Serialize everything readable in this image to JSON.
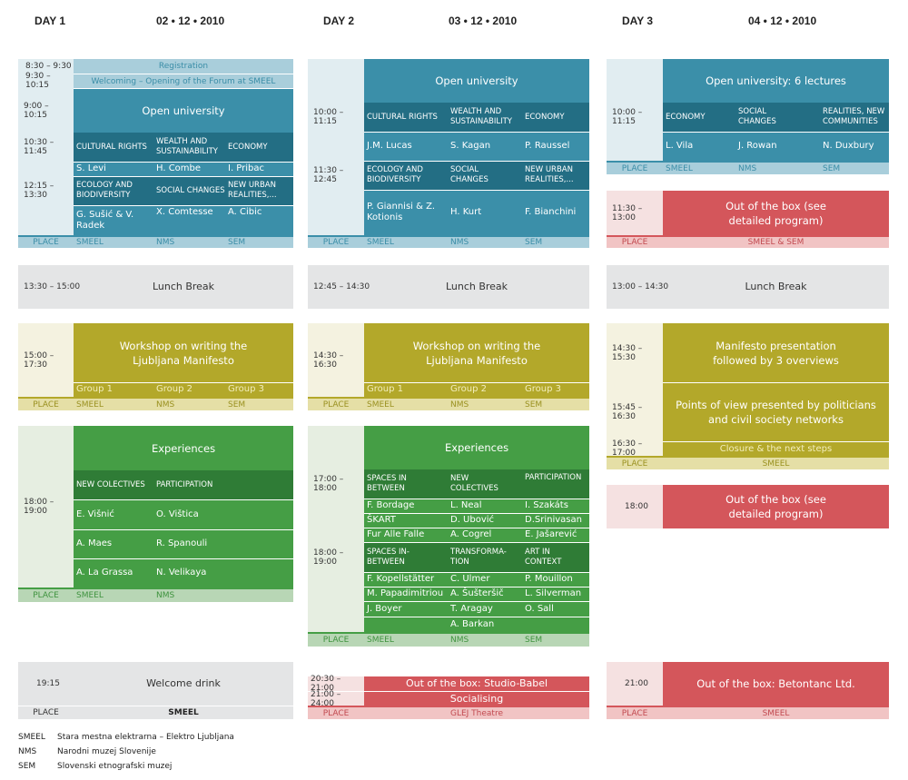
{
  "headers": {
    "day1": "DAY 1",
    "date1": "02 • 12 • 2010",
    "day2": "DAY 2",
    "date2": "03 • 12 • 2010",
    "day3": "DAY 3",
    "date3": "04 • 12 • 2010"
  },
  "place_label": "PLACE",
  "day1": {
    "t_reg": "8:30 – 9:30",
    "registration": "Registration",
    "t_welcome": "9:30 – 10:15",
    "welcoming": "Welcoming – Opening of the Forum at SMEEL",
    "t_open": "9:00 – 10:15",
    "open_university": "Open university",
    "t_s1": "10:30 – 11:45",
    "s1": [
      "CULTURAL RIGHTS",
      "WEALTH AND SUSTAINABILITY",
      "ECONOMY"
    ],
    "s1_names": [
      "S. Levi",
      "H. Combe",
      "I. Pribac"
    ],
    "t_s2": "12:15 – 13:30",
    "s2": [
      "ECOLOGY AND BIODIVERSITY",
      "SOCIAL CHANGES",
      "NEW URBAN REALITIES,..."
    ],
    "s2_names": [
      "G. Sušić & V. Radek",
      "X. Comtesse",
      "A. Cibic"
    ],
    "places1": [
      "SMEEL",
      "NMS",
      "SEM"
    ],
    "t_lunch": "13:30 – 15:00",
    "lunch": "Lunch Break",
    "t_ws": "15:00 – 17:30",
    "workshop": "Workshop on writing the Ljubljana Manifesto",
    "groups": [
      "Group 1",
      "Group 2",
      "Group 3"
    ],
    "places_ws": [
      "SMEEL",
      "NMS",
      "SEM"
    ],
    "experiences": "Experiences",
    "t_exp": "18:00 – 19:00",
    "exp_topics": [
      "NEW COLECTIVES",
      "PARTICIPATION"
    ],
    "exp_names": [
      [
        "E. Višnić",
        "O. Vištica"
      ],
      [
        "A. Maes",
        "R. Spanouli"
      ],
      [
        "A. La Grassa",
        "N. Velikaya"
      ]
    ],
    "places_exp": [
      "SMEEL",
      "NMS"
    ],
    "t_drink": "19:15",
    "drink": "Welcome drink",
    "drink_place": "SMEEL"
  },
  "day2": {
    "open_university": "Open university",
    "t_s1": "10:00 – 11:15",
    "s1": [
      "CULTURAL RIGHTS",
      "WEALTH AND SUSTAINABILITY",
      "ECONOMY"
    ],
    "s1_names": [
      "J.M. Lucas",
      "S. Kagan",
      "P. Raussel"
    ],
    "t_s2": "11:30 – 12:45",
    "s2": [
      "ECOLOGY AND BIODIVERSITY",
      "SOCIAL CHANGES",
      "NEW URBAN REALITIES,..."
    ],
    "s2_names": [
      "P. Giannisi & Z. Kotionis",
      "H. Kurt",
      "F. Bianchini"
    ],
    "places1": [
      "SMEEL",
      "NMS",
      "SEM"
    ],
    "t_lunch": "12:45 – 14:30",
    "lunch": "Lunch Break",
    "t_ws": "14:30 – 16:30",
    "workshop": "Workshop on writing the Ljubljana Manifesto",
    "groups": [
      "Group 1",
      "Group 2",
      "Group 3"
    ],
    "places_ws": [
      "SMEEL",
      "NMS",
      "SEM"
    ],
    "experiences": "Experiences",
    "t_e1": "17:00 – 18:00",
    "e1_topics": [
      "SPACES IN BETWEEN",
      "NEW COLECTIVES",
      "PARTICIPATION"
    ],
    "e1_names": [
      [
        "F. Bordage",
        "L. Neal",
        "I. Szakáts"
      ],
      [
        "ŠKART",
        "D. Ubović",
        "D.Srinivasan"
      ],
      [
        "Fur Alle Falle",
        "A. Cogrel",
        "E. Jašarević"
      ]
    ],
    "t_e2": "18:00 – 19:00",
    "e2_topics": [
      "SPACES IN-BETWEEN",
      "TRANSFORMA- TION",
      "ART IN CONTEXT"
    ],
    "e2_names": [
      [
        "F. Kopellstätter",
        "C. Ulmer",
        "P. Mouillon"
      ],
      [
        "M. Papadimitriou",
        "A. Šušteršič",
        "L. Silverman"
      ],
      [
        "J. Boyer",
        "T. Aragay",
        "O. Sall"
      ],
      [
        "",
        "A. Barkan",
        ""
      ]
    ],
    "places_exp": [
      "SMEEL",
      "NMS",
      "SEM"
    ],
    "t_ob1": "20:30 – 21:00",
    "ob1": "Out of the box: Studio-Babel",
    "t_ob2": "21:00 – 24:00",
    "ob2": "Socialising",
    "ob_place": "GLEJ Theatre"
  },
  "day3": {
    "open_university": "Open university: 6 lectures",
    "t_s1": "10:00 – 11:15",
    "s1": [
      "ECONOMY",
      "SOCIAL CHANGES",
      "REALITIES, NEW COMMUNITIES"
    ],
    "s1_names": [
      "L. Vila",
      "J. Rowan",
      "N. Duxbury"
    ],
    "places1": [
      "SMEEL",
      "NMS",
      "SEM"
    ],
    "t_box1": "11:30 – 13:00",
    "box1": "Out of the box (see detailed program)",
    "box1_place": "SMEEL & SEM",
    "t_lunch": "13:00 – 14:30",
    "lunch": "Lunch Break",
    "t_man": "14:30 – 15:30",
    "manifesto": "Manifesto presentation followed by 3 overviews",
    "t_pov": "15:45 – 16:30",
    "pov": "Points of view presented by politicians and civil society networks",
    "t_close": "16:30 – 17:00",
    "closure": "Closure & the next steps",
    "man_place": "SMEEL",
    "t_box2": "18:00",
    "box2": "Out of the box (see detailed program)",
    "t_beton": "21:00",
    "beton": "Out of the box: Betontanc Ltd.",
    "beton_place": "SMEEL"
  },
  "legend": [
    {
      "abbr": "SMEEL",
      "name": "Stara mestna elektrarna – Elektro Ljubljana"
    },
    {
      "abbr": "NMS",
      "name": "Narodni muzej Slovenije"
    },
    {
      "abbr": "SEM",
      "name": "Slovenski etnografski muzej"
    }
  ]
}
